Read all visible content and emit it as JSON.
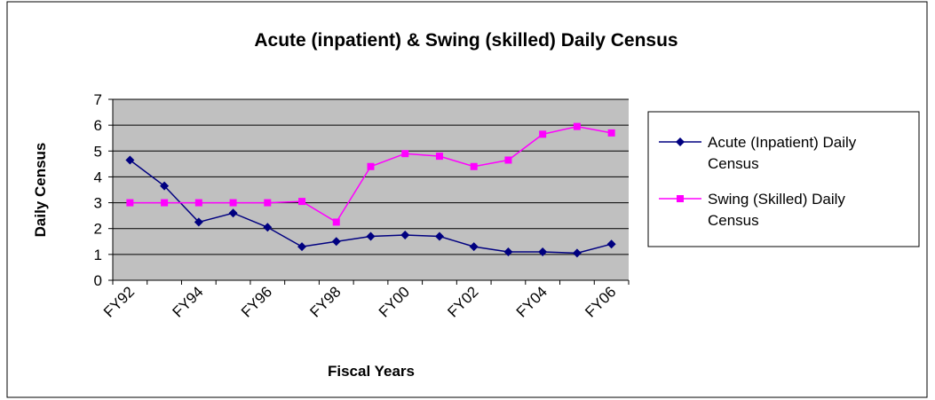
{
  "chart_data": {
    "type": "line",
    "title": "Acute (inpatient) & Swing (skilled) Daily Census",
    "x_label": "Fiscal Years",
    "y_label": "Daily Census",
    "categories": [
      "FY92",
      null,
      "FY94",
      null,
      "FY96",
      null,
      "FY98",
      null,
      "FY00",
      null,
      "FY02",
      null,
      "FY04",
      null,
      "FY06"
    ],
    "series": [
      {
        "name": "Acute (Inpatient) Daily Census",
        "color": "#000080",
        "marker": "diamond",
        "values": [
          4.65,
          3.65,
          2.25,
          2.6,
          2.05,
          1.3,
          1.5,
          1.7,
          1.75,
          1.7,
          1.3,
          1.1,
          1.1,
          1.05,
          1.4
        ]
      },
      {
        "name": "Swing (Skilled) Daily Census",
        "color": "#ff00ff",
        "marker": "square",
        "values": [
          3,
          3,
          3,
          3,
          3,
          3.05,
          2.25,
          4.4,
          4.9,
          4.8,
          4.4,
          4.65,
          5.65,
          5.95,
          5.7
        ]
      }
    ],
    "ylim": [
      0,
      7
    ],
    "yticks": [
      0,
      1,
      2,
      3,
      4,
      5,
      6,
      7
    ],
    "grid": true,
    "legend": "right"
  }
}
